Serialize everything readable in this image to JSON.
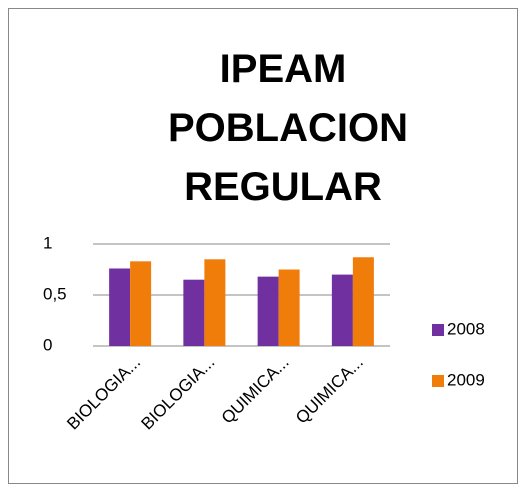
{
  "chart_data": {
    "type": "bar",
    "title": "IPEAM POBLACION REGULAR",
    "categories": [
      "BIOLOGIA...",
      "BIOLOGIA...",
      "QUIMICA...",
      "QUIMICA..."
    ],
    "series": [
      {
        "name": "2008",
        "color": "#7030a0",
        "values": [
          0.76,
          0.65,
          0.68,
          0.7
        ]
      },
      {
        "name": "2009",
        "color": "#f07c0a",
        "values": [
          0.83,
          0.85,
          0.75,
          0.87
        ]
      }
    ],
    "ylim": [
      0,
      1
    ],
    "yticks": [
      0,
      {
        "value": 0.5,
        "label": "0,5"
      },
      1
    ],
    "grid": true,
    "legend": "right"
  }
}
